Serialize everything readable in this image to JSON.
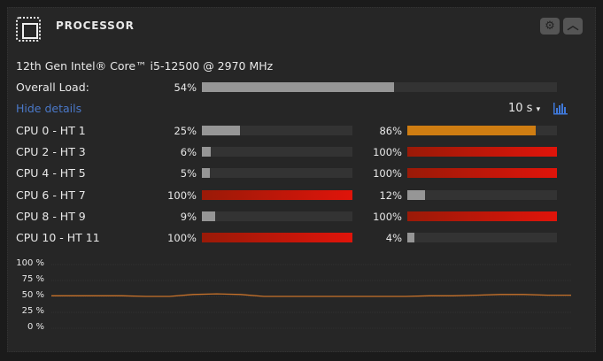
{
  "header": {
    "title": "PROCESSOR",
    "icon": "cpu-chip-icon",
    "settings_icon": "gear-icon",
    "collapse_icon": "chevron-up-icon"
  },
  "cpu_name": "12th Gen Intel® Core™ i5-12500 @ 2970 MHz",
  "overall": {
    "label": "Overall Load:",
    "value_text": "54%",
    "value": 54
  },
  "hide_details": "Hide details",
  "interval": {
    "selected": "10 s",
    "arrow": "▾"
  },
  "chart_toggle_icon": "bar-chart-icon",
  "colors": {
    "low": "#969696",
    "mid": "#cf7d12",
    "high_start": "#9a1a08",
    "high_end": "#e0140a",
    "track": "#333333",
    "line": "#c8722a"
  },
  "cores": [
    {
      "label": "CPU 0 - HT 1",
      "a_text": "25%",
      "a": 25,
      "b_text": "86%",
      "b": 86
    },
    {
      "label": "CPU 2 - HT 3",
      "a_text": "6%",
      "a": 6,
      "b_text": "100%",
      "b": 100
    },
    {
      "label": "CPU 4 - HT 5",
      "a_text": "5%",
      "a": 5,
      "b_text": "100%",
      "b": 100
    },
    {
      "label": "CPU 6 - HT 7",
      "a_text": "100%",
      "a": 100,
      "b_text": "12%",
      "b": 12
    },
    {
      "label": "CPU 8 - HT 9",
      "a_text": "9%",
      "a": 9,
      "b_text": "100%",
      "b": 100
    },
    {
      "label": "CPU 10 - HT 11",
      "a_text": "100%",
      "a": 100,
      "b_text": "4%",
      "b": 4
    }
  ],
  "chart_data": {
    "type": "line",
    "yticks": [
      "100 %",
      "75 %",
      "50 %",
      "25 %",
      "0 %"
    ],
    "ylim": [
      0,
      100
    ],
    "grid": true,
    "series": [
      {
        "values": [
          51,
          51,
          51,
          51,
          50,
          50,
          53,
          54,
          53,
          50,
          50,
          50,
          50,
          50,
          50,
          50,
          51,
          51,
          52,
          53,
          53,
          52,
          52
        ]
      }
    ]
  }
}
